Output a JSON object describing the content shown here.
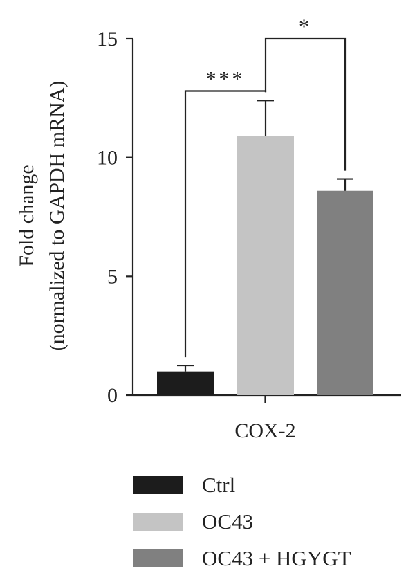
{
  "chart_data": {
    "type": "bar",
    "categories": [
      "COX-2"
    ],
    "series": [
      {
        "name": "Ctrl",
        "values": [
          1.0
        ],
        "error": [
          0.25
        ],
        "color": "#1c1c1c"
      },
      {
        "name": "OC43",
        "values": [
          10.9
        ],
        "error": [
          1.5
        ],
        "color": "#c4c4c4"
      },
      {
        "name": "OC43 + HGYGT",
        "values": [
          8.6
        ],
        "error": [
          0.5
        ],
        "color": "#808080"
      }
    ],
    "ylabel_line1": "Fold change",
    "ylabel_line2": "(normalized to GAPDH mRNA)",
    "ylim": [
      0,
      15
    ],
    "yticks": [
      0,
      5,
      10,
      15
    ],
    "ytick_labels": [
      "0",
      "5",
      "10",
      "15"
    ],
    "grid": false,
    "legend_position": "bottom",
    "significance": [
      {
        "from": 0,
        "to": 1,
        "label": "***",
        "level": 12.8
      },
      {
        "from": 1,
        "to": 2,
        "label": "*",
        "level": 15.0
      }
    ]
  }
}
